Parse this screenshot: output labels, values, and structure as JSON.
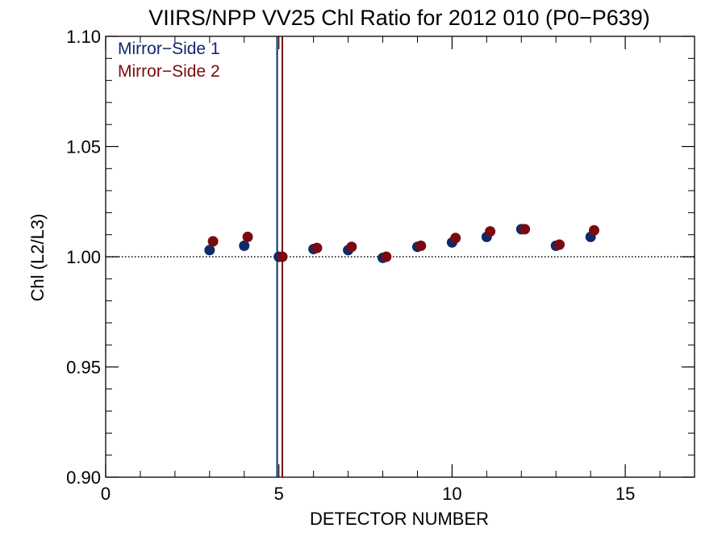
{
  "chart_data": {
    "type": "scatter",
    "title": "VIIRS/NPP VV25 Chl Ratio for 2012 010 (P0−P639)",
    "xlabel": "DETECTOR NUMBER",
    "ylabel": "Chl (L2/L3)",
    "xlim": [
      0,
      17
    ],
    "ylim": [
      0.9,
      1.1
    ],
    "x_ticks": [
      0,
      5,
      10,
      15
    ],
    "x_tick_labels": [
      "0",
      "5",
      "10",
      "15"
    ],
    "y_ticks": [
      0.9,
      0.95,
      1.0,
      1.05,
      1.1
    ],
    "y_tick_labels": [
      "0.90",
      "0.95",
      "1.00",
      "1.05",
      "1.10"
    ],
    "grid": false,
    "reference_line": {
      "y": 1.0,
      "style": "dotted"
    },
    "vertical_lines": [
      {
        "x": 4.95,
        "color": "#0e2a6b"
      },
      {
        "x": 5.1,
        "color": "#7a0a10"
      }
    ],
    "legend_position": "top-left",
    "series": [
      {
        "name": "Mirror−Side 1",
        "color": "#0e2a6b",
        "x": [
          3,
          4,
          5,
          6,
          7,
          8,
          9,
          10,
          11,
          12,
          13,
          14
        ],
        "y": [
          1.003,
          1.005,
          1.0,
          1.0035,
          1.003,
          0.9995,
          1.0045,
          1.0065,
          1.009,
          1.0125,
          1.005,
          1.009
        ]
      },
      {
        "name": "Mirror−Side 2",
        "color": "#7a0a10",
        "x": [
          3.1,
          4.1,
          5.1,
          6.1,
          7.1,
          8.1,
          9.1,
          10.1,
          11.1,
          12.1,
          13.1,
          14.1
        ],
        "y": [
          1.007,
          1.009,
          1.0,
          1.004,
          1.0045,
          1.0,
          1.005,
          1.0085,
          1.0115,
          1.0125,
          1.0055,
          1.012
        ]
      }
    ]
  }
}
